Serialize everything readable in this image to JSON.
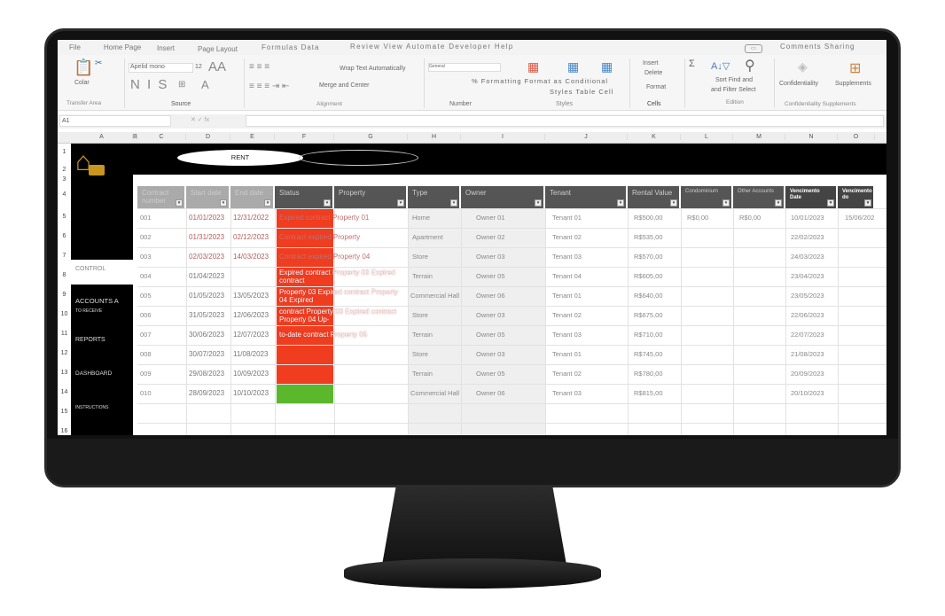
{
  "ribbon_tabs": [
    "File",
    "Home Page",
    "Insert",
    "Page Layout",
    "Formulas Data",
    "Review View Automate Developer Help"
  ],
  "right_tabs": "Comments Sharing",
  "ribbon": {
    "paste": "Colar",
    "transfer_area": "Transfer Area",
    "font_name": "Apelid mono",
    "font_size": "12",
    "font_buttons": "N I S",
    "source": "Source",
    "wrap_text": "Wrap Text Automatically",
    "merge": "Merge and Center",
    "alignment": "Alignment",
    "number_format": "General",
    "number": "Number",
    "cond_format": "% Formatting Format as Conditional",
    "styles_line": "Styles Table Cell",
    "styles": "Styles",
    "insert": "Insert",
    "delete": "Delete",
    "format": "Format",
    "cells": "Cells",
    "sort": "Sort Find and",
    "filter": "and Filter Select",
    "edition": "Edition",
    "confidentiality": "Confidentiality",
    "supplements": "Supplements",
    "conf_group": "Confidentiality Supplements"
  },
  "name_box": "A1",
  "columns": [
    "A",
    "B",
    "C",
    "D",
    "E",
    "F",
    "G",
    "H",
    "I",
    "J",
    "K",
    "L",
    "M",
    "N",
    "O"
  ],
  "rows": [
    "1",
    "2",
    "3",
    "4",
    "5",
    "6",
    "7",
    "8",
    "9",
    "10",
    "11",
    "12",
    "13",
    "14",
    "15",
    "16"
  ],
  "banner_title": "RENT",
  "sidebar": [
    "CONTROL",
    "ACCOUNTS A",
    "TO RECEIVE",
    "REPORTS",
    "DASHBOARD",
    "INSTRUCTIONS"
  ],
  "headers": [
    "Contract number",
    "Start date",
    "End date",
    "Status",
    "Property",
    "Type",
    "Owner",
    "Tenant",
    "Rental Value",
    "Condominium",
    "Other Accounts",
    "Vencimento Date",
    "Vencimento do"
  ],
  "status_colors": {
    "expired": "#f03c1f",
    "up_to_date": "#5bb72c"
  },
  "records": [
    {
      "num": "001",
      "start": "01/01/2023",
      "end": "12/31/2022",
      "status_text": "Expired contract Property 01",
      "status": "expired",
      "type": "Home",
      "owner": "Owner 01",
      "tenant": "Tenant 01",
      "rent": "R$500,00",
      "condo": "R$0,00",
      "other": "R$0,00",
      "due": "10/01/2023",
      "due2": "15/06/202"
    },
    {
      "num": "002",
      "start": "01/31/2023",
      "end": "02/12/2023",
      "status_text": "Contract expired Property",
      "status": "expired",
      "type": "Apartment",
      "owner": "Owner 02",
      "tenant": "Tenant 02",
      "rent": "R$535,00",
      "due": "22/02/2023"
    },
    {
      "num": "003",
      "start": "02/03/2023",
      "end": "14/03/2023",
      "status_text": "Contract expired Property 04",
      "status": "expired",
      "type": "Store",
      "owner": "Owner 03",
      "tenant": "Tenant 03",
      "rent": "R$570,00",
      "due": "24/03/2023"
    },
    {
      "num": "004",
      "start": "01/04/2023",
      "end": "",
      "status_text": "Expired contract Property 03 Expired contract",
      "status": "expired",
      "type": "Terrain",
      "owner": "Owner 05",
      "tenant": "Tenant 04",
      "rent": "R$605,00",
      "due": "23/04/2023"
    },
    {
      "num": "005",
      "start": "01/05/2023",
      "end": "13/05/2023",
      "status_text": "Property 03 Expired contract Property 04 Expired",
      "status": "expired",
      "type": "Commercial Hall",
      "owner": "Owner 06",
      "tenant": "Tenant 01",
      "rent": "R$640,00",
      "due": "23/05/2023"
    },
    {
      "num": "006",
      "start": "31/05/2023",
      "end": "12/06/2023",
      "status_text": "contract Property 03 Expired contract Property 04 Up-",
      "status": "expired",
      "type": "Store",
      "owner": "Owner 03",
      "tenant": "Tenant 02",
      "rent": "R$675,00",
      "due": "22/06/2023"
    },
    {
      "num": "007",
      "start": "30/06/2023",
      "end": "12/07/2023",
      "status_text": "to-date contract Property 05",
      "status": "expired",
      "type": "Terrain",
      "owner": "Owner 05",
      "tenant": "Tenant 03",
      "rent": "R$710,00",
      "due": "22/07/2023"
    },
    {
      "num": "008",
      "start": "30/07/2023",
      "end": "11/08/2023",
      "status_text": "",
      "status": "expired",
      "type": "Store",
      "owner": "Owner 03",
      "tenant": "Tenant 01",
      "rent": "R$745,00",
      "due": "21/08/2023"
    },
    {
      "num": "009",
      "start": "29/08/2023",
      "end": "10/09/2023",
      "status_text": "",
      "status": "expired",
      "type": "Terrain",
      "owner": "Owner 05",
      "tenant": "Tenant 02",
      "rent": "R$780,00",
      "due": "20/09/2023"
    },
    {
      "num": "010",
      "start": "28/09/2023",
      "end": "10/10/2023",
      "status_text": "",
      "status": "up_to_date",
      "type": "Commercial Hall",
      "owner": "Owner 06",
      "tenant": "Tenant 03",
      "rent": "R$815,00",
      "due": "20/10/2023"
    }
  ]
}
